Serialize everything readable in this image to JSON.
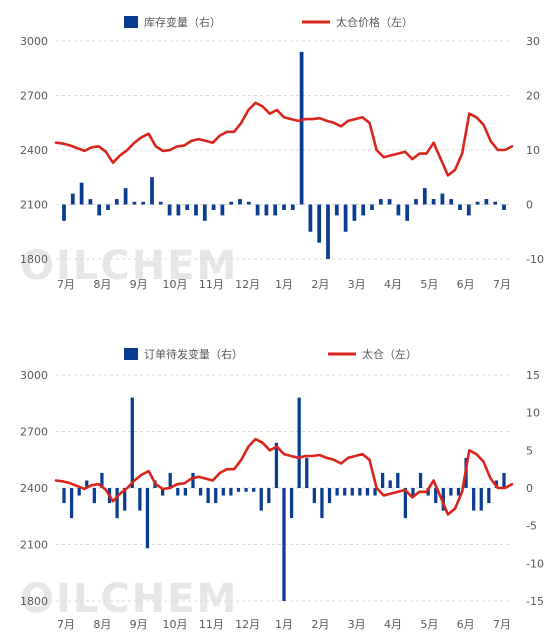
{
  "watermark": "OILCHEM",
  "colors": {
    "bar": "#0a3d91",
    "line": "#d9251c",
    "grid": "#d9d9d9",
    "axis_text": "#595959",
    "watermark": "#e6e6e6"
  },
  "chart_data": [
    {
      "type": "bar+line",
      "legend": [
        {
          "label": "库存变量（右）",
          "kind": "bar"
        },
        {
          "label": "太仓价格（左）",
          "kind": "line"
        }
      ],
      "legend_position": "top-center",
      "grid": "horizontal dashed",
      "ylim_left": [
        1800,
        3000
      ],
      "yticks_left": [
        1800,
        2100,
        2400,
        2700,
        3000
      ],
      "ylim_right": [
        -10,
        30
      ],
      "yticks_right": [
        -10,
        0,
        10,
        20,
        30
      ],
      "x_ticks": [
        "7月",
        "8月",
        "9月",
        "10月",
        "11月",
        "12月",
        "1月",
        "2月",
        "3月",
        "4月",
        "5月",
        "6月",
        "7月"
      ],
      "series": [
        {
          "name": "库存变量（右）",
          "axis": "right",
          "kind": "bar",
          "values": [
            -3,
            2,
            4,
            1,
            -2,
            -1,
            1,
            3,
            0.5,
            0.5,
            5,
            0.5,
            -2,
            -2,
            -1,
            -2,
            -3,
            -1,
            -2,
            0.5,
            1,
            0.5,
            -2,
            -2,
            -2,
            -1,
            -1,
            28,
            -5,
            -7,
            -10,
            -2,
            -5,
            -3,
            -2,
            -1,
            1,
            1,
            -2,
            -3,
            1,
            3,
            1,
            2,
            1,
            -1,
            -2,
            0.5,
            1,
            0.5,
            -1
          ]
        },
        {
          "name": "太仓价格（左）",
          "axis": "left",
          "kind": "line",
          "values": [
            2440,
            2435,
            2425,
            2410,
            2395,
            2415,
            2420,
            2390,
            2330,
            2370,
            2400,
            2440,
            2470,
            2490,
            2420,
            2395,
            2400,
            2420,
            2425,
            2450,
            2460,
            2450,
            2440,
            2480,
            2500,
            2500,
            2550,
            2620,
            2660,
            2640,
            2600,
            2620,
            2580,
            2570,
            2560,
            2570,
            2570,
            2575,
            2560,
            2550,
            2530,
            2560,
            2570,
            2580,
            2550,
            2400,
            2360,
            2370,
            2380,
            2390,
            2350,
            2380,
            2380,
            2440,
            2350,
            2260,
            2290,
            2380,
            2600,
            2580,
            2540,
            2450,
            2400,
            2400,
            2420
          ]
        }
      ]
    },
    {
      "type": "bar+line",
      "legend": [
        {
          "label": "订单待发变量（右）",
          "kind": "bar"
        },
        {
          "label": "太仓（左）",
          "kind": "line"
        }
      ],
      "legend_position": "top-center",
      "grid": "horizontal dashed",
      "ylim_left": [
        1800,
        3000
      ],
      "yticks_left": [
        1800,
        2100,
        2400,
        2700,
        3000
      ],
      "ylim_right": [
        -15,
        15
      ],
      "yticks_right": [
        -15,
        -10,
        -5,
        0,
        5,
        10,
        15
      ],
      "x_ticks": [
        "7月",
        "8月",
        "9月",
        "10月",
        "11月",
        "12月",
        "1月",
        "2月",
        "3月",
        "4月",
        "5月",
        "6月",
        "7月"
      ],
      "series": [
        {
          "name": "订单待发变量（右）",
          "axis": "right",
          "kind": "bar",
          "values": [
            -2,
            -4,
            -1,
            1,
            -2,
            2,
            -2,
            -4,
            -3,
            12,
            -3,
            -8,
            1,
            -1,
            2,
            -1,
            -1,
            2,
            -1,
            -2,
            -2,
            -1,
            -1,
            -0.5,
            -0.5,
            -0.5,
            -3,
            -2,
            6,
            -15,
            -4,
            12,
            4,
            -2,
            -4,
            -2,
            -1,
            -1,
            -1,
            -1,
            -1,
            -1,
            2,
            1,
            2,
            -4,
            -1,
            2,
            -1,
            -2,
            -3,
            -1,
            -1,
            4,
            -3,
            -3,
            -2,
            1,
            2
          ]
        },
        {
          "name": "太仓（左）",
          "axis": "left",
          "kind": "line",
          "values": [
            2440,
            2435,
            2425,
            2410,
            2395,
            2415,
            2420,
            2390,
            2330,
            2370,
            2400,
            2440,
            2470,
            2490,
            2420,
            2395,
            2400,
            2420,
            2425,
            2450,
            2460,
            2450,
            2440,
            2480,
            2500,
            2500,
            2550,
            2620,
            2660,
            2640,
            2600,
            2620,
            2580,
            2570,
            2560,
            2570,
            2570,
            2575,
            2560,
            2550,
            2530,
            2560,
            2570,
            2580,
            2550,
            2400,
            2360,
            2370,
            2380,
            2390,
            2350,
            2380,
            2380,
            2440,
            2350,
            2260,
            2290,
            2380,
            2600,
            2580,
            2540,
            2450,
            2400,
            2400,
            2420
          ]
        }
      ]
    }
  ]
}
